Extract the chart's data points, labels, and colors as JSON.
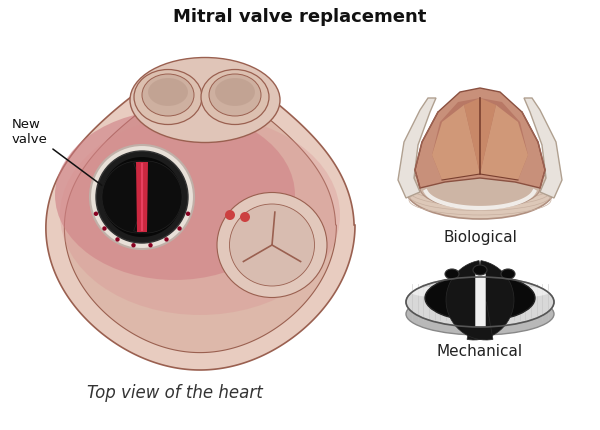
{
  "title": "Mitral valve replacement",
  "subtitle_bottom": "Top view of the heart",
  "label_new_valve": "New\nvalve",
  "label_biological": "Biological",
  "label_mechanical": "Mechanical",
  "bg_color": "#ffffff",
  "title_fontsize": 13,
  "label_fontsize": 11,
  "heart_body_color": "#e8cec4",
  "heart_body_edge": "#a06050",
  "heart_inner_color": "#cc7080",
  "heart_outer_color": "#e8cec4",
  "valve_ring_color": "#1a1a1a",
  "valve_white_ring": "#e8e0d8",
  "valve_inner_color": "#0d0d0d",
  "valve_leaflet_color": "#8b1a2a",
  "bio_outer_color": "#e8cec4",
  "bio_cup_color": "#c8845a",
  "mech_ring_color": "#d8d8d8",
  "mech_inner_color": "#0d0d0d",
  "mech_strut_color": "#ffffff"
}
